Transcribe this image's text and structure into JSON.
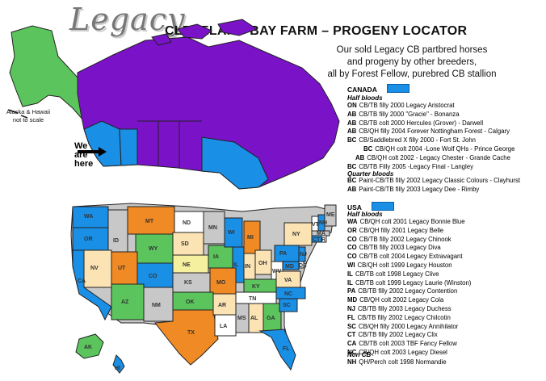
{
  "header": {
    "logo": "Legacy",
    "title": "CLEVELAND BAY FARM – PROGENY LOCATOR",
    "subtitle": [
      "Our sold Legacy CB partbred horses",
      "and progeny by other breeders,",
      "all by Forest Fellow, purebred CB stallion"
    ]
  },
  "map": {
    "alaska_note": [
      "Alaska & Hawaii",
      "not to scale"
    ],
    "here_label": [
      "We",
      "are",
      "here"
    ],
    "colors": {
      "purple": "#7a12c8",
      "blue": "#1a8fe6",
      "green": "#5cc45c",
      "orange": "#f08a24",
      "grey": "#c8c8c8",
      "cream": "#fbe3b4",
      "yellow": "#f5f0a0",
      "white": "#ffffff"
    },
    "us_states": [
      "WA",
      "OR",
      "ID",
      "MT",
      "ND",
      "MN",
      "WI",
      "MI",
      "NY",
      "VT",
      "NH",
      "ME",
      "MA",
      "RI",
      "CT",
      "NJ",
      "DE",
      "MD",
      "PA",
      "WY",
      "SD",
      "IA",
      "IL",
      "IN",
      "OH",
      "NV",
      "CA",
      "UT",
      "CO",
      "NE",
      "MO",
      "KY",
      "WV",
      "VA",
      "AZ",
      "NM",
      "KS",
      "OK",
      "AR",
      "TN",
      "NC",
      "SC",
      "GA",
      "AL",
      "MS",
      "TX",
      "LA",
      "FL",
      "AK",
      "HI"
    ]
  },
  "canada": {
    "heading": "CANADA",
    "half_label": "Half bloods",
    "half": [
      {
        "code": "ON",
        "text": "CB/TB filly 2000 Legacy Aristocrat"
      },
      {
        "code": "AB",
        "text": "CB/TB filly 2000 \"Gracie\" - Bonanza"
      },
      {
        "code": "AB",
        "text": "CB/TB colt 2000 Hercules (Grover) - Darwell"
      },
      {
        "code": "AB",
        "text": "CB/QH filly 2004 Forever Nottingham Forest - Calgary"
      },
      {
        "code": "BC",
        "text": "CB/Saddlebred X filly 2000 - Fort St. John"
      },
      {
        "code": "BC",
        "text": "CB/QH colt 2004 -Lone Wolf QHs - Prince George"
      },
      {
        "code": "AB",
        "text": "CB/QH colt 2002 - Legacy Chester - Grande Cache"
      },
      {
        "code": "BC",
        "text": "CB/TB Filly 2005 -Legacy Final - Langley"
      }
    ],
    "quarter_label": "Quarter bloods",
    "quarter": [
      {
        "code": "BC",
        "text": "Paint-CB/TB filly 2002 Legacy Classic Colours - Clayhurst"
      },
      {
        "code": "AB",
        "text": "Paint-CB/TB filly 2003 Legacy Dee - Rimby"
      }
    ]
  },
  "usa": {
    "heading": "USA",
    "half_label": "Half bloods",
    "half": [
      {
        "code": "WA",
        "text": "CB/QH colt 2001 Legacy Bonnie Blue"
      },
      {
        "code": "OR",
        "text": "CB/QH filly 2001 Legacy Belle"
      },
      {
        "code": "CO",
        "text": "CB/TB  filly 2002 Legacy Chinook"
      },
      {
        "code": "CO",
        "text": "CB/TB filly 2003 Legacy Diva"
      },
      {
        "code": "CO",
        "text": "CB/TB colt 2004 Legacy Extravagant"
      },
      {
        "code": "WI",
        "text": "CB/QH colt 1999 Legacy Houston"
      },
      {
        "code": "IL",
        "text": "CB/TB  colt 1998 Legacy Clive"
      },
      {
        "code": "IL",
        "text": "CB/TB colt 1999 Legacy Laurie (Winston)"
      },
      {
        "code": "PA",
        "text": "CB/TB  filly 2002 Legacy Contention"
      },
      {
        "code": "MD",
        "text": "CB/QH colt 2002 Legacy Cola"
      },
      {
        "code": "NJ",
        "text": "CB/TB  filly 2003 Legacy Duchess"
      },
      {
        "code": "FL",
        "text": "CB/TB  filly 2002 Legacy Chilcotin"
      },
      {
        "code": "SC",
        "text": "CB/QH filly 2000 Legacy Annihilator"
      },
      {
        "code": "CT",
        "text": "CB/TB  filly 2002 Legacy Clix"
      },
      {
        "code": "CA",
        "text": "CB/TB colt 2003 TBF Fancy Fellow"
      },
      {
        "code": "NC",
        "text": "CB/QH colt 2003 Legacy Diesel"
      }
    ],
    "noncb_label": "Non CB",
    "noncb": [
      {
        "code": "NH",
        "text": "QH/Perch colt 1998 Normandie"
      }
    ]
  }
}
